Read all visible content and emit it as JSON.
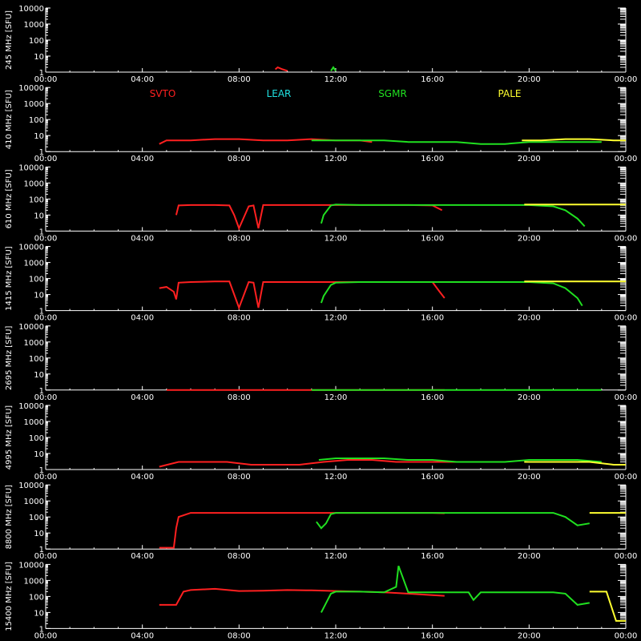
{
  "colors": {
    "background": "#000000",
    "axis": "#ffffff",
    "SVTO": "#ff2020",
    "LEAR": "#20e0e0",
    "SGMR": "#20e020",
    "PALE": "#ffff30"
  },
  "stations": [
    "SVTO",
    "LEAR",
    "SGMR",
    "PALE"
  ],
  "x_ticks": [
    "00:00",
    "04:00",
    "08:00",
    "12:00",
    "16:00",
    "20:00",
    "00:00"
  ],
  "y_ticks": [
    "1",
    "10",
    "100",
    "1000",
    "10000"
  ],
  "chart_data": [
    {
      "type": "line",
      "ylabel": "245 MHz [SFU]",
      "xlim": [
        0,
        24
      ],
      "ylim": [
        1,
        10000
      ],
      "yscale": "log",
      "series": [
        {
          "name": "SVTO",
          "x": [
            9.5,
            9.6,
            9.8,
            10.0
          ],
          "y": [
            1.5,
            2,
            1.5,
            1.2
          ]
        },
        {
          "name": "SGMR",
          "x": [
            11.8,
            11.9,
            12.0
          ],
          "y": [
            1.2,
            2,
            1.2
          ]
        }
      ]
    },
    {
      "type": "line",
      "ylabel": "410 MHz [SFU]",
      "xlim": [
        0,
        24
      ],
      "ylim": [
        1,
        10000
      ],
      "yscale": "log",
      "series": [
        {
          "name": "SVTO",
          "x": [
            4.7,
            5.0,
            6.0,
            7.0,
            8.0,
            9.0,
            10.0,
            11.0,
            12.0,
            13.0,
            13.5
          ],
          "y": [
            3,
            5,
            5,
            6,
            6,
            5,
            5,
            6,
            5,
            5,
            4
          ]
        },
        {
          "name": "SGMR",
          "x": [
            11.0,
            12.0,
            13.0,
            14.0,
            15.0,
            16.0,
            17.0,
            18.0,
            19.0,
            20.0,
            21.0,
            22.0,
            23.0
          ],
          "y": [
            5,
            5,
            5,
            5,
            4,
            4,
            4,
            3,
            3,
            4,
            4,
            4,
            4
          ]
        },
        {
          "name": "PALE",
          "x": [
            19.7,
            20.5,
            21.5,
            22.5,
            23.5,
            24.0
          ],
          "y": [
            5,
            5,
            6,
            6,
            5,
            5
          ]
        }
      ]
    },
    {
      "type": "line",
      "ylabel": "610 MHz [SFU]",
      "xlim": [
        0,
        24
      ],
      "ylim": [
        1,
        10000
      ],
      "yscale": "log",
      "series": [
        {
          "name": "SVTO",
          "x": [
            5.4,
            5.5,
            6.0,
            7.0,
            7.6,
            7.8,
            8.0,
            8.4,
            8.6,
            8.8,
            9.0,
            10.0,
            11.0,
            12.0,
            13.0,
            14.0,
            15.0,
            16.0,
            16.4
          ],
          "y": [
            10,
            40,
            42,
            42,
            40,
            10,
            1.5,
            35,
            40,
            1.5,
            42,
            42,
            42,
            42,
            42,
            42,
            42,
            40,
            20
          ]
        },
        {
          "name": "SGMR",
          "x": [
            11.4,
            11.5,
            11.8,
            12.0,
            13.0,
            14.0,
            15.0,
            16.0,
            17.0,
            18.0,
            19.0,
            20.0,
            21.0,
            21.5,
            22.0,
            22.3
          ],
          "y": [
            3,
            10,
            40,
            45,
            42,
            42,
            42,
            42,
            42,
            42,
            42,
            42,
            35,
            20,
            6,
            2
          ]
        },
        {
          "name": "PALE",
          "x": [
            19.8,
            20.5,
            21.5,
            22.5,
            23.5,
            24.0
          ],
          "y": [
            45,
            45,
            45,
            45,
            45,
            45
          ]
        }
      ]
    },
    {
      "type": "line",
      "ylabel": "1415 MHz [SFU]",
      "xlim": [
        0,
        24
      ],
      "ylim": [
        1,
        10000
      ],
      "yscale": "log",
      "series": [
        {
          "name": "SVTO",
          "x": [
            4.7,
            5.0,
            5.3,
            5.4,
            5.5,
            6.0,
            7.0,
            7.6,
            7.8,
            8.0,
            8.4,
            8.6,
            8.8,
            9.0,
            10.0,
            11.0,
            12.0,
            13.0,
            14.0,
            15.0,
            16.0,
            16.3,
            16.5
          ],
          "y": [
            25,
            30,
            15,
            5,
            55,
            60,
            65,
            65,
            10,
            1.5,
            60,
            55,
            1.5,
            60,
            60,
            60,
            60,
            60,
            60,
            60,
            60,
            15,
            6
          ]
        },
        {
          "name": "SGMR",
          "x": [
            11.4,
            11.5,
            11.8,
            12.0,
            13.0,
            14.0,
            15.0,
            16.0,
            17.0,
            18.0,
            19.0,
            20.0,
            21.0,
            21.5,
            22.0,
            22.2
          ],
          "y": [
            3,
            8,
            40,
            55,
            60,
            60,
            60,
            60,
            60,
            60,
            60,
            60,
            50,
            25,
            6,
            2
          ]
        },
        {
          "name": "PALE",
          "x": [
            19.8,
            20.5,
            21.5,
            22.5,
            23.5,
            24.0
          ],
          "y": [
            65,
            65,
            65,
            65,
            65,
            65
          ]
        }
      ]
    },
    {
      "type": "line",
      "ylabel": "2695 MHz [SFU]",
      "xlim": [
        0,
        24
      ],
      "ylim": [
        1,
        10000
      ],
      "yscale": "log",
      "series": [
        {
          "name": "SVTO",
          "x": [
            5.0,
            9.0,
            13.0,
            16.5
          ],
          "y": [
            1,
            1,
            1,
            1
          ]
        },
        {
          "name": "SGMR",
          "x": [
            11.0,
            15.0,
            19.0,
            23.0
          ],
          "y": [
            1,
            1,
            1,
            1
          ]
        }
      ]
    },
    {
      "type": "line",
      "ylabel": "4995 MHz [SFU]",
      "xlim": [
        0,
        24
      ],
      "ylim": [
        1,
        10000
      ],
      "yscale": "log",
      "series": [
        {
          "name": "SVTO",
          "x": [
            4.7,
            5.5,
            6.5,
            7.5,
            8.5,
            9.5,
            10.5,
            11.5,
            12.5,
            13.5,
            14.5,
            15.5,
            16.5,
            17.0
          ],
          "y": [
            1.5,
            3,
            3,
            3,
            2,
            2,
            2,
            3,
            4,
            4,
            3,
            3,
            3,
            3
          ]
        },
        {
          "name": "SGMR",
          "x": [
            11.3,
            12.0,
            13.0,
            14.0,
            15.0,
            16.0,
            17.0,
            18.0,
            19.0,
            20.0,
            21.0,
            22.0,
            23.0
          ],
          "y": [
            4,
            5,
            5,
            5,
            4,
            4,
            3,
            3,
            3,
            4,
            4,
            4,
            3
          ]
        },
        {
          "name": "PALE",
          "x": [
            19.8,
            20.5,
            21.5,
            22.5,
            23.5,
            24.0
          ],
          "y": [
            3,
            3,
            3,
            3,
            2,
            2
          ]
        }
      ]
    },
    {
      "type": "line",
      "ylabel": "8800 MHz [SFU]",
      "xlim": [
        0,
        24
      ],
      "ylim": [
        1,
        10000
      ],
      "yscale": "log",
      "series": [
        {
          "name": "SVTO",
          "x": [
            4.7,
            5.3,
            5.4,
            5.5,
            6.0,
            7.0,
            8.0,
            9.0,
            10.0,
            11.0,
            12.0,
            13.0,
            14.0,
            15.0,
            16.0,
            16.5
          ],
          "y": [
            1.2,
            1.2,
            20,
            100,
            180,
            180,
            180,
            180,
            180,
            180,
            180,
            180,
            180,
            180,
            180,
            170
          ]
        },
        {
          "name": "SGMR",
          "x": [
            11.2,
            11.4,
            11.6,
            11.8,
            12.0,
            13.0,
            14.0,
            15.0,
            16.0,
            17.0,
            18.0,
            19.0,
            20.0,
            21.0,
            21.5,
            22.0,
            22.5
          ],
          "y": [
            50,
            20,
            40,
            150,
            180,
            180,
            180,
            180,
            180,
            180,
            180,
            180,
            180,
            180,
            100,
            30,
            40
          ]
        },
        {
          "name": "PALE",
          "x": [
            22.5,
            23.5,
            24.0
          ],
          "y": [
            180,
            180,
            180
          ]
        }
      ]
    },
    {
      "type": "line",
      "ylabel": "15400 MHz [SFU]",
      "xlim": [
        0,
        24
      ],
      "ylim": [
        1,
        10000
      ],
      "yscale": "log",
      "series": [
        {
          "name": "SVTO",
          "x": [
            4.7,
            5.2,
            5.4,
            5.7,
            6.0,
            7.0,
            8.0,
            9.0,
            10.0,
            11.0,
            12.0,
            13.0,
            14.0,
            15.0,
            16.0,
            16.5
          ],
          "y": [
            30,
            30,
            30,
            200,
            250,
            300,
            220,
            230,
            250,
            240,
            220,
            200,
            180,
            150,
            120,
            110
          ]
        },
        {
          "name": "SGMR",
          "x": [
            11.4,
            11.8,
            12.0,
            13.0,
            14.0,
            14.5,
            14.6,
            15.0,
            16.0,
            17.0,
            17.5,
            17.7,
            18.0,
            19.0,
            20.0,
            21.0,
            21.5,
            22.0,
            22.5
          ],
          "y": [
            10,
            150,
            200,
            200,
            180,
            400,
            8000,
            180,
            180,
            180,
            180,
            60,
            180,
            180,
            180,
            180,
            150,
            30,
            40
          ]
        },
        {
          "name": "PALE",
          "x": [
            22.5,
            23.2,
            23.6,
            24.0
          ],
          "y": [
            200,
            200,
            3,
            3
          ]
        }
      ]
    }
  ]
}
